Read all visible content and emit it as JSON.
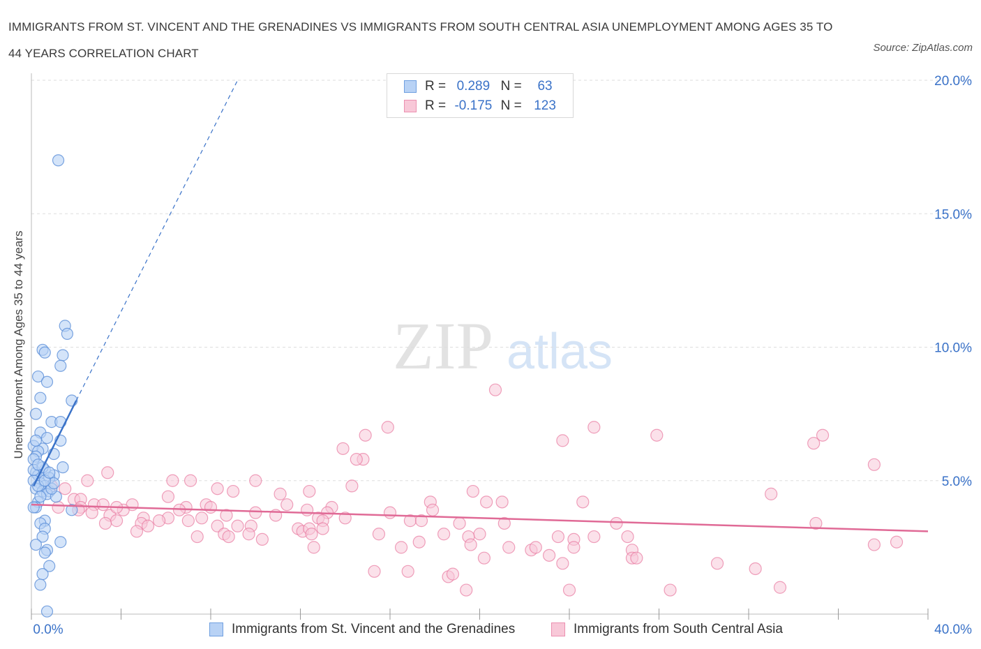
{
  "title": "IMMIGRANTS FROM ST. VINCENT AND THE GRENADINES VS IMMIGRANTS FROM SOUTH CENTRAL ASIA UNEMPLOYMENT AMONG AGES 35 TO 44 YEARS CORRELATION CHART",
  "source": "Source: ZipAtlas.com",
  "watermark": {
    "zip": "ZIP",
    "atlas": "atlas"
  },
  "colors": {
    "blue": "#5b8fd8",
    "blue_fill": "#b8d2f5",
    "blue_line": "#3a72c8",
    "pink": "#e8799f",
    "pink_fill": "#f8c8d8",
    "pink_line": "#e06a96",
    "tick_text": "#3a72c8",
    "grid": "#dddddd"
  },
  "legend_top": {
    "rows": [
      {
        "r_label": "R =",
        "r_value": "0.289",
        "n_label": "N =",
        "n_value": "63"
      },
      {
        "r_label": "R =",
        "r_value": "-0.175",
        "n_label": "N =",
        "n_value": "123"
      }
    ]
  },
  "legend_bottom": [
    {
      "label": "Immigrants from St. Vincent and the Grenadines"
    },
    {
      "label": "Immigrants from South Central Asia"
    }
  ],
  "chart_data": {
    "type": "scatter",
    "title": "IMMIGRANTS FROM ST. VINCENT AND THE GRENADINES VS IMMIGRANTS FROM SOUTH CENTRAL ASIA UNEMPLOYMENT AMONG AGES 35 TO 44 YEARS CORRELATION CHART",
    "xlabel": "",
    "ylabel": "Unemployment Among Ages 35 to 44 years",
    "xlim": [
      0,
      40
    ],
    "ylim": [
      0,
      20
    ],
    "x_tick_labels": [
      "0.0%",
      "40.0%"
    ],
    "y_ticks": [
      {
        "value": 5,
        "label": "5.0%"
      },
      {
        "value": 10,
        "label": "10.0%"
      },
      {
        "value": 15,
        "label": "15.0%"
      },
      {
        "value": 20,
        "label": "20.0%"
      }
    ],
    "grid": true,
    "series": [
      {
        "name": "Immigrants from St. Vincent and the Grenadines",
        "R": 0.289,
        "N": 63,
        "trend": {
          "x0": 0.1,
          "y0": 4.8,
          "x1": 2.0,
          "y1": 8.0,
          "dashed_to_x": 9.2,
          "dashed_to_y": 20.0
        },
        "points": [
          [
            1.2,
            17.0
          ],
          [
            1.5,
            10.8
          ],
          [
            1.6,
            10.5
          ],
          [
            0.5,
            9.9
          ],
          [
            0.6,
            9.8
          ],
          [
            1.4,
            9.7
          ],
          [
            1.3,
            9.3
          ],
          [
            0.3,
            8.9
          ],
          [
            0.7,
            8.7
          ],
          [
            0.4,
            8.1
          ],
          [
            1.8,
            8.0
          ],
          [
            0.2,
            7.5
          ],
          [
            0.9,
            7.2
          ],
          [
            1.3,
            7.2
          ],
          [
            0.4,
            6.8
          ],
          [
            0.7,
            6.6
          ],
          [
            1.3,
            6.5
          ],
          [
            0.1,
            6.3
          ],
          [
            0.5,
            6.2
          ],
          [
            0.3,
            6.1
          ],
          [
            1.0,
            6.0
          ],
          [
            0.2,
            5.9
          ],
          [
            0.1,
            5.8
          ],
          [
            1.4,
            5.5
          ],
          [
            0.6,
            5.4
          ],
          [
            0.2,
            5.3
          ],
          [
            0.3,
            5.2
          ],
          [
            1.0,
            5.2
          ],
          [
            0.8,
            5.1
          ],
          [
            0.1,
            5.0
          ],
          [
            0.4,
            4.9
          ],
          [
            0.6,
            4.8
          ],
          [
            0.2,
            4.7
          ],
          [
            0.5,
            4.6
          ],
          [
            0.8,
            4.6
          ],
          [
            0.7,
            4.5
          ],
          [
            1.1,
            4.4
          ],
          [
            0.3,
            4.2
          ],
          [
            0.2,
            4.0
          ],
          [
            0.1,
            4.0
          ],
          [
            1.8,
            3.9
          ],
          [
            0.6,
            3.5
          ],
          [
            0.4,
            3.4
          ],
          [
            0.6,
            3.2
          ],
          [
            0.5,
            2.9
          ],
          [
            1.3,
            2.7
          ],
          [
            0.2,
            2.6
          ],
          [
            0.7,
            2.4
          ],
          [
            0.6,
            2.3
          ],
          [
            0.8,
            1.8
          ],
          [
            0.5,
            1.5
          ],
          [
            0.4,
            1.1
          ],
          [
            0.7,
            0.1
          ],
          [
            0.3,
            4.8
          ],
          [
            0.9,
            4.7
          ],
          [
            0.1,
            5.4
          ],
          [
            0.5,
            5.5
          ],
          [
            1.0,
            4.9
          ],
          [
            0.2,
            6.5
          ],
          [
            0.6,
            5.0
          ],
          [
            0.4,
            4.4
          ],
          [
            0.3,
            5.6
          ],
          [
            0.8,
            5.3
          ]
        ]
      },
      {
        "name": "Immigrants from South Central Asia",
        "R": -0.175,
        "N": 123,
        "trend": {
          "x0": 0.0,
          "y0": 4.1,
          "x1": 40.0,
          "y1": 3.1
        },
        "points": [
          [
            20.7,
            8.4
          ],
          [
            15.9,
            7.0
          ],
          [
            25.1,
            7.0
          ],
          [
            14.9,
            6.7
          ],
          [
            27.9,
            6.7
          ],
          [
            23.7,
            6.5
          ],
          [
            35.3,
            6.7
          ],
          [
            34.9,
            6.4
          ],
          [
            13.9,
            6.2
          ],
          [
            14.8,
            5.8
          ],
          [
            14.5,
            5.8
          ],
          [
            37.6,
            5.6
          ],
          [
            3.4,
            5.3
          ],
          [
            2.5,
            5.0
          ],
          [
            6.3,
            5.0
          ],
          [
            7.1,
            5.0
          ],
          [
            10.0,
            5.0
          ],
          [
            14.3,
            4.8
          ],
          [
            0.9,
            4.8
          ],
          [
            1.5,
            4.7
          ],
          [
            8.3,
            4.7
          ],
          [
            9.0,
            4.6
          ],
          [
            12.4,
            4.6
          ],
          [
            19.7,
            4.6
          ],
          [
            11.1,
            4.5
          ],
          [
            33.0,
            4.5
          ],
          [
            6.1,
            4.4
          ],
          [
            1.9,
            4.3
          ],
          [
            2.2,
            4.3
          ],
          [
            17.8,
            4.2
          ],
          [
            20.3,
            4.2
          ],
          [
            21.0,
            4.2
          ],
          [
            24.6,
            4.2
          ],
          [
            2.8,
            4.1
          ],
          [
            3.2,
            4.1
          ],
          [
            4.5,
            4.1
          ],
          [
            7.8,
            4.1
          ],
          [
            11.4,
            4.1
          ],
          [
            1.2,
            4.0
          ],
          [
            2.2,
            4.0
          ],
          [
            6.9,
            4.0
          ],
          [
            8.0,
            4.0
          ],
          [
            13.4,
            4.0
          ],
          [
            17.9,
            3.9
          ],
          [
            4.1,
            3.9
          ],
          [
            6.6,
            3.9
          ],
          [
            12.3,
            3.9
          ],
          [
            13.2,
            3.8
          ],
          [
            16.0,
            3.8
          ],
          [
            2.7,
            3.8
          ],
          [
            10.0,
            3.8
          ],
          [
            3.5,
            3.7
          ],
          [
            8.7,
            3.7
          ],
          [
            5.0,
            3.6
          ],
          [
            6.1,
            3.6
          ],
          [
            7.6,
            3.6
          ],
          [
            12.8,
            3.6
          ],
          [
            13.0,
            3.5
          ],
          [
            16.9,
            3.5
          ],
          [
            17.4,
            3.5
          ],
          [
            3.8,
            3.5
          ],
          [
            4.9,
            3.4
          ],
          [
            19.1,
            3.4
          ],
          [
            21.1,
            3.4
          ],
          [
            26.1,
            3.4
          ],
          [
            35.0,
            3.4
          ],
          [
            3.3,
            3.4
          ],
          [
            5.2,
            3.3
          ],
          [
            8.3,
            3.3
          ],
          [
            9.8,
            3.3
          ],
          [
            11.9,
            3.2
          ],
          [
            12.1,
            3.1
          ],
          [
            12.4,
            3.2
          ],
          [
            13.0,
            3.2
          ],
          [
            4.7,
            3.1
          ],
          [
            8.6,
            3.0
          ],
          [
            9.7,
            3.0
          ],
          [
            12.5,
            3.0
          ],
          [
            15.5,
            3.0
          ],
          [
            18.4,
            3.0
          ],
          [
            20.0,
            3.0
          ],
          [
            23.5,
            2.9
          ],
          [
            25.1,
            2.9
          ],
          [
            26.6,
            2.9
          ],
          [
            19.5,
            2.9
          ],
          [
            24.2,
            2.8
          ],
          [
            7.4,
            2.9
          ],
          [
            10.3,
            2.8
          ],
          [
            8.8,
            2.9
          ],
          [
            17.3,
            2.7
          ],
          [
            19.6,
            2.6
          ],
          [
            21.3,
            2.5
          ],
          [
            16.5,
            2.5
          ],
          [
            22.3,
            2.4
          ],
          [
            26.8,
            2.4
          ],
          [
            12.6,
            2.5
          ],
          [
            22.5,
            2.5
          ],
          [
            23.1,
            2.2
          ],
          [
            24.2,
            2.5
          ],
          [
            37.6,
            2.6
          ],
          [
            38.6,
            2.7
          ],
          [
            20.2,
            2.1
          ],
          [
            26.8,
            2.1
          ],
          [
            27.0,
            2.1
          ],
          [
            23.7,
            1.9
          ],
          [
            30.6,
            1.9
          ],
          [
            32.3,
            1.7
          ],
          [
            15.3,
            1.6
          ],
          [
            16.8,
            1.6
          ],
          [
            18.6,
            1.4
          ],
          [
            18.8,
            1.5
          ],
          [
            19.4,
            0.9
          ],
          [
            24.0,
            0.9
          ],
          [
            28.5,
            0.9
          ],
          [
            33.4,
            1.0
          ],
          [
            3.8,
            4.0
          ],
          [
            2.1,
            3.9
          ],
          [
            10.9,
            3.7
          ],
          [
            14.0,
            3.6
          ],
          [
            5.7,
            3.5
          ],
          [
            9.2,
            3.3
          ],
          [
            7.0,
            3.5
          ]
        ]
      }
    ]
  }
}
